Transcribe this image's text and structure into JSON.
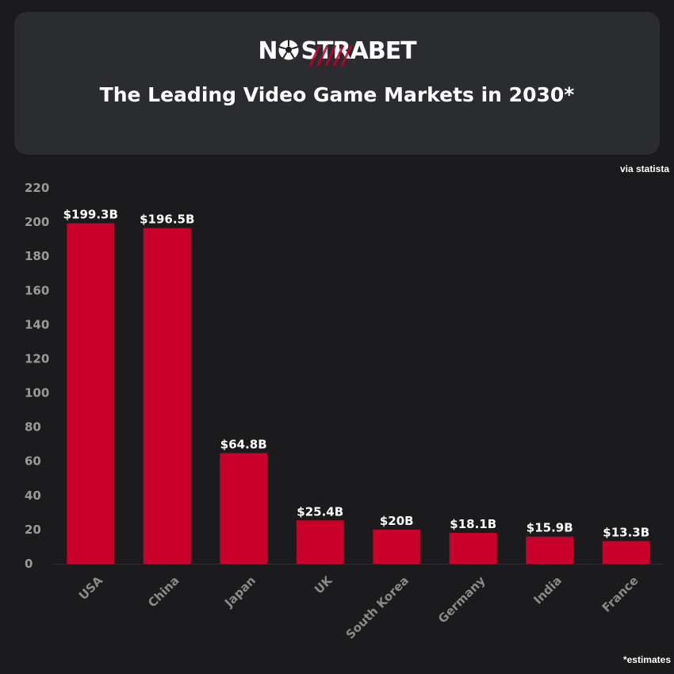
{
  "brand": {
    "logo_prefix": "N",
    "logo_suffix": "STRABET",
    "accent_color": "#c8002a"
  },
  "header": {
    "title": "The Leading Video Game Markets in 2030*"
  },
  "source_note": "via statista",
  "footnote": "*estimates",
  "chart_data": {
    "type": "bar",
    "title": "The Leading Video Game Markets in 2030*",
    "xlabel": "",
    "ylabel": "",
    "ylim": [
      0,
      220
    ],
    "yticks": [
      0,
      20,
      40,
      60,
      80,
      100,
      120,
      140,
      160,
      180,
      200,
      220
    ],
    "grid": false,
    "bar_color": "#c8002a",
    "categories": [
      "USA",
      "China",
      "Japan",
      "UK",
      "South Korea",
      "Germany",
      "India",
      "France"
    ],
    "values": [
      199.3,
      196.5,
      64.8,
      25.4,
      20,
      18.1,
      15.9,
      13.3
    ],
    "data_labels": [
      "$199.3B",
      "$196.5B",
      "$64.8B",
      "$25.4B",
      "$20B",
      "$18.1B",
      "$15.9B",
      "$13.3B"
    ]
  }
}
